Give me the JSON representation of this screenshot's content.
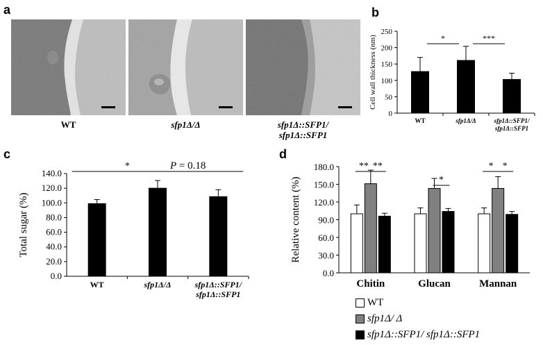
{
  "panels": {
    "a": {
      "letter": "a"
    },
    "b": {
      "letter": "b"
    },
    "c": {
      "letter": "c"
    },
    "d": {
      "letter": "d"
    }
  },
  "micrographs": [
    {
      "label_line1": "WT",
      "label_line2": ""
    },
    {
      "label_line1": "sfp1Δ/Δ",
      "label_line2": ""
    },
    {
      "label_line1": "sfp1Δ::SFP1/",
      "label_line2": "sfp1Δ::SFP1"
    }
  ],
  "chart_data": [
    {
      "panel": "b",
      "type": "bar",
      "ylabel": "Cell wall thickness (nm)",
      "ylim": [
        0,
        250
      ],
      "yticks": [
        0,
        50,
        100,
        150,
        200,
        250
      ],
      "categories": [
        "WT",
        "sfp1Δ/Δ",
        "sfp1Δ::SFP1/\nsfp1Δ::SFP1"
      ],
      "values": [
        128,
        162,
        104
      ],
      "errors": [
        42,
        42,
        18
      ],
      "bar_color": "#000000",
      "significance": [
        {
          "from": 0,
          "to": 1,
          "label": "*"
        },
        {
          "from": 1,
          "to": 2,
          "label": "***"
        }
      ]
    },
    {
      "panel": "c",
      "type": "bar",
      "ylabel": "Total sugar (%)",
      "ylim": [
        0,
        140
      ],
      "yticks": [
        "0.0",
        "20.0",
        "40.0",
        "60.0",
        "80.0",
        "100.0",
        "120.0",
        "140.0"
      ],
      "categories": [
        "WT",
        "sfp1Δ/Δ",
        "sfp1Δ::SFP1/\nsfp1Δ::SFP1"
      ],
      "values": [
        99.5,
        120.5,
        109
      ],
      "errors": [
        5,
        10,
        9
      ],
      "bar_color": "#000000",
      "significance": [
        {
          "from": 0,
          "to": 1,
          "label": "*"
        },
        {
          "from": 1,
          "to": 2,
          "label": "P = 0.18"
        }
      ]
    },
    {
      "panel": "d",
      "type": "bar",
      "ylabel": "Relative content (%)",
      "ylim": [
        0,
        180
      ],
      "yticks": [
        "0.0",
        "30.0",
        "60.0",
        "90.0",
        "120.0",
        "150.0",
        "180.0"
      ],
      "categories": [
        "Chitin",
        "Glucan",
        "Mannan"
      ],
      "series": [
        {
          "name": "WT",
          "color": "#ffffff",
          "values": [
            100,
            100,
            100
          ],
          "errors": [
            15,
            10,
            10
          ]
        },
        {
          "name": "sfp1Δ/ Δ",
          "color": "#808080",
          "values": [
            151,
            143,
            143
          ],
          "errors": [
            23,
            17,
            20
          ]
        },
        {
          "name": "sfp1Δ::SFP1/ sfp1Δ::SFP1",
          "color": "#000000",
          "values": [
            96,
            104,
            99
          ],
          "errors": [
            5,
            5,
            5
          ]
        }
      ],
      "significance": [
        {
          "group": 0,
          "from": 0,
          "to": 1,
          "label": "**"
        },
        {
          "group": 0,
          "from": 1,
          "to": 2,
          "label": "**"
        },
        {
          "group": 1,
          "from": 1,
          "to": 2,
          "label": "*"
        },
        {
          "group": 2,
          "from": 0,
          "to": 1,
          "label": "*"
        },
        {
          "group": 2,
          "from": 1,
          "to": 2,
          "label": "*"
        }
      ]
    }
  ]
}
